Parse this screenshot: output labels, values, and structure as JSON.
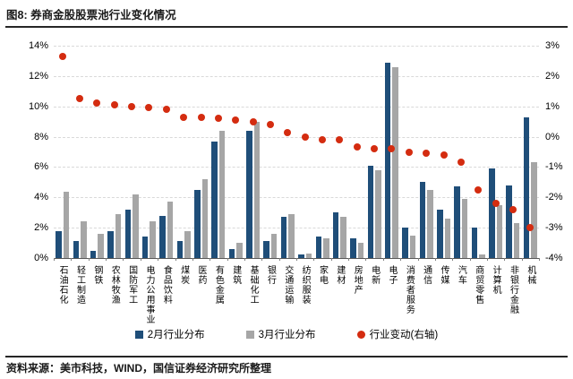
{
  "figure": {
    "title": "图8: 券商金股股票池行业变化情况",
    "source": "资料来源：美市科技，WIND，国信证券经济研究所整理"
  },
  "chart_data": {
    "type": "bar",
    "title": "券商金股股票池行业变化情况",
    "categories": [
      "石油石化",
      "轻工制造",
      "钢铁",
      "农林牧渔",
      "国防军工",
      "电力公用事业",
      "食品饮料",
      "煤炭",
      "医药",
      "有色金属",
      "建筑",
      "基础化工",
      "银行",
      "交通运输",
      "纺织服装",
      "家电",
      "建材",
      "房地产",
      "电新",
      "电子",
      "消费者服务",
      "通信",
      "传媒",
      "汽车",
      "商贸零售",
      "计算机",
      "非银行金融",
      "机械"
    ],
    "series": [
      {
        "name": "2月行业分布",
        "type": "bar",
        "axis": "left",
        "color": "#1F4E79",
        "values": [
          1.8,
          1.1,
          0.5,
          1.8,
          3.2,
          1.4,
          2.8,
          1.1,
          4.5,
          7.7,
          0.6,
          8.4,
          1.1,
          2.7,
          0.25,
          1.4,
          3.0,
          1.3,
          6.1,
          12.9,
          2.0,
          5.0,
          3.2,
          4.7,
          2.0,
          5.9,
          4.8,
          9.3
        ]
      },
      {
        "name": "3月行业分布",
        "type": "bar",
        "axis": "left",
        "color": "#A6A6A6",
        "values": [
          4.4,
          2.4,
          1.6,
          2.9,
          4.2,
          2.4,
          3.7,
          1.8,
          5.2,
          8.4,
          1.0,
          9.0,
          1.6,
          2.9,
          0.3,
          1.3,
          2.7,
          1.0,
          5.8,
          12.6,
          1.5,
          4.5,
          2.6,
          3.9,
          0.25,
          3.5,
          2.3,
          6.3
        ]
      },
      {
        "name": "行业变动(右轴)",
        "type": "scatter",
        "axis": "right",
        "color": "#D42C10",
        "values": [
          2.65,
          1.25,
          1.1,
          1.05,
          1.0,
          0.95,
          0.9,
          0.65,
          0.65,
          0.6,
          0.55,
          0.5,
          0.4,
          0.15,
          0.0,
          -0.1,
          -0.1,
          -0.35,
          -0.4,
          -0.4,
          -0.5,
          -0.55,
          -0.6,
          -0.85,
          -1.75,
          -2.2,
          -2.4,
          -3.0
        ]
      }
    ],
    "left_axis": {
      "min": 0,
      "max": 14,
      "step": 2,
      "unit": "%",
      "tick_labels": [
        "0%",
        "2%",
        "4%",
        "6%",
        "8%",
        "10%",
        "12%",
        "14%"
      ]
    },
    "right_axis": {
      "min": -4,
      "max": 3,
      "step": 1,
      "unit": "%",
      "tick_labels": [
        "-4%",
        "-3%",
        "-2%",
        "-1%",
        "0%",
        "1%",
        "2%",
        "3%"
      ]
    },
    "grid": "horizontal-dashed",
    "legend_position": "bottom"
  }
}
